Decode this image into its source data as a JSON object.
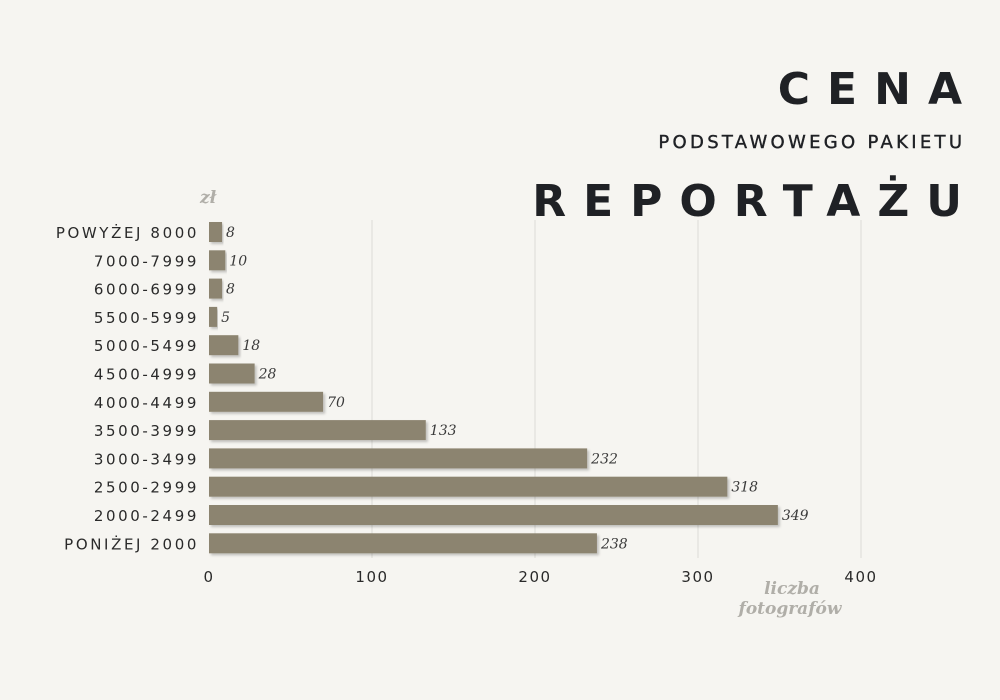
{
  "title": {
    "line1": "CENA",
    "line2": "PODSTAWOWEGO PAKIETU",
    "line3": "REPORTAŻU"
  },
  "colors": {
    "background": "#f6f5f1",
    "bar": "#8c8470",
    "bar_shadow": "#cfccc4",
    "grid": "#dcdbd6",
    "title": "#1f2125",
    "axis_note": "#b0aea8"
  },
  "chart_data": {
    "type": "bar",
    "orientation": "horizontal",
    "title": "CENA PODSTAWOWEGO PAKIETU REPORTAŻU",
    "ylabel": "zł",
    "xlabel": "liczba fotografów",
    "categories": [
      "POWYŻEJ 8000",
      "7000-7999",
      "6000-6999",
      "5500-5999",
      "5000-5499",
      "4500-4999",
      "4000-4499",
      "3500-3999",
      "3000-3499",
      "2500-2999",
      "2000-2499",
      "PONIŻEJ 2000"
    ],
    "values": [
      8,
      10,
      8,
      5,
      18,
      28,
      70,
      133,
      232,
      318,
      349,
      238
    ],
    "xlim": [
      0,
      400
    ],
    "xticks": [
      0,
      100,
      200,
      300,
      400
    ],
    "grid": true,
    "data_labels": true
  }
}
